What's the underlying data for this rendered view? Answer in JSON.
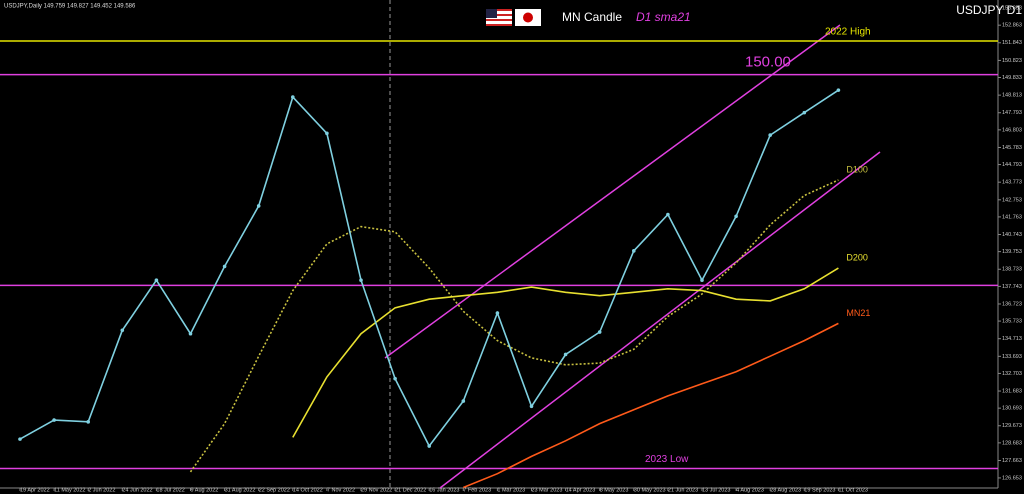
{
  "chart_data": {
    "type": "line",
    "header": "USDJPY,Daily  149.759 149.827 149.452 149.586",
    "title": "MN Candle",
    "subtitle": "D1 sma21",
    "symbol": "USDJPY D1",
    "x": [
      "19 Apr 2022",
      "11 May 2022",
      "2 Jun 2022",
      "24 Jun 2022",
      "18 Jul 2022",
      "9 Aug 2022",
      "31 Aug 2022",
      "22 Sep 2022",
      "14 Oct 2022",
      "7 Nov 2022",
      "29 Nov 2022",
      "21 Dec 2022",
      "16 Jan 2023",
      "7 Feb 2023",
      "1 Mar 2023",
      "23 Mar 2023",
      "14 Apr 2023",
      "8 May 2023",
      "30 May 2023",
      "21 Jun 2023",
      "13 Jul 2023",
      "4 Aug 2023",
      "28 Aug 2023",
      "19 Sep 2023",
      "11 Oct 2023"
    ],
    "values": [
      128.9,
      130.0,
      129.9,
      135.2,
      138.1,
      135.0,
      138.9,
      142.4,
      148.7,
      146.6,
      138.1,
      132.4,
      128.5,
      131.1,
      136.2,
      130.8,
      133.8,
      135.1,
      139.8,
      141.9,
      138.1,
      141.8,
      146.5,
      147.8,
      149.1
    ],
    "color": "#7fd0e0",
    "series": [
      {
        "name": "D100",
        "color": "#c8c040",
        "dashed": true,
        "values": [
          null,
          null,
          null,
          null,
          null,
          127.0,
          129.8,
          133.7,
          137.5,
          140.2,
          141.2,
          140.9,
          138.8,
          136.3,
          134.6,
          133.6,
          133.2,
          133.3,
          134.1,
          136.0,
          137.3,
          139.1,
          141.3,
          143.0,
          143.9
        ]
      },
      {
        "name": "D200",
        "color": "#e8e030",
        "dashed": false,
        "values": [
          null,
          null,
          null,
          null,
          null,
          null,
          null,
          null,
          129.0,
          132.5,
          135.0,
          136.5,
          137.0,
          137.2,
          137.4,
          137.7,
          137.4,
          137.2,
          137.4,
          137.6,
          137.5,
          137.0,
          136.9,
          137.6,
          138.8
        ]
      },
      {
        "name": "MN21",
        "color": "#ff5a1a",
        "dashed": false,
        "values": [
          null,
          null,
          null,
          null,
          null,
          null,
          null,
          null,
          null,
          null,
          null,
          null,
          null,
          126.1,
          126.9,
          127.9,
          128.8,
          129.8,
          130.6,
          131.4,
          132.1,
          132.8,
          133.7,
          134.6,
          135.6
        ]
      }
    ],
    "hlines": [
      {
        "value": 151.95,
        "label": "2022 High",
        "color": "#e6e600"
      },
      {
        "value": 150,
        "label": "150.00",
        "color": "#e040e0"
      },
      {
        "value": 137.8,
        "color": "#e040e0"
      },
      {
        "value": 127.2,
        "label": "2023 Low",
        "color": "#e040e0"
      }
    ],
    "ylim": [
      126.07,
      154.32
    ],
    "yticks": [
      153.853,
      152.863,
      151.843,
      150.823,
      149.833,
      148.813,
      147.793,
      146.803,
      145.783,
      144.793,
      143.773,
      142.753,
      141.763,
      140.743,
      139.753,
      138.733,
      137.743,
      136.723,
      135.733,
      134.713,
      133.693,
      132.703,
      131.683,
      130.693,
      129.673,
      128.683,
      127.663,
      126.653
    ]
  }
}
